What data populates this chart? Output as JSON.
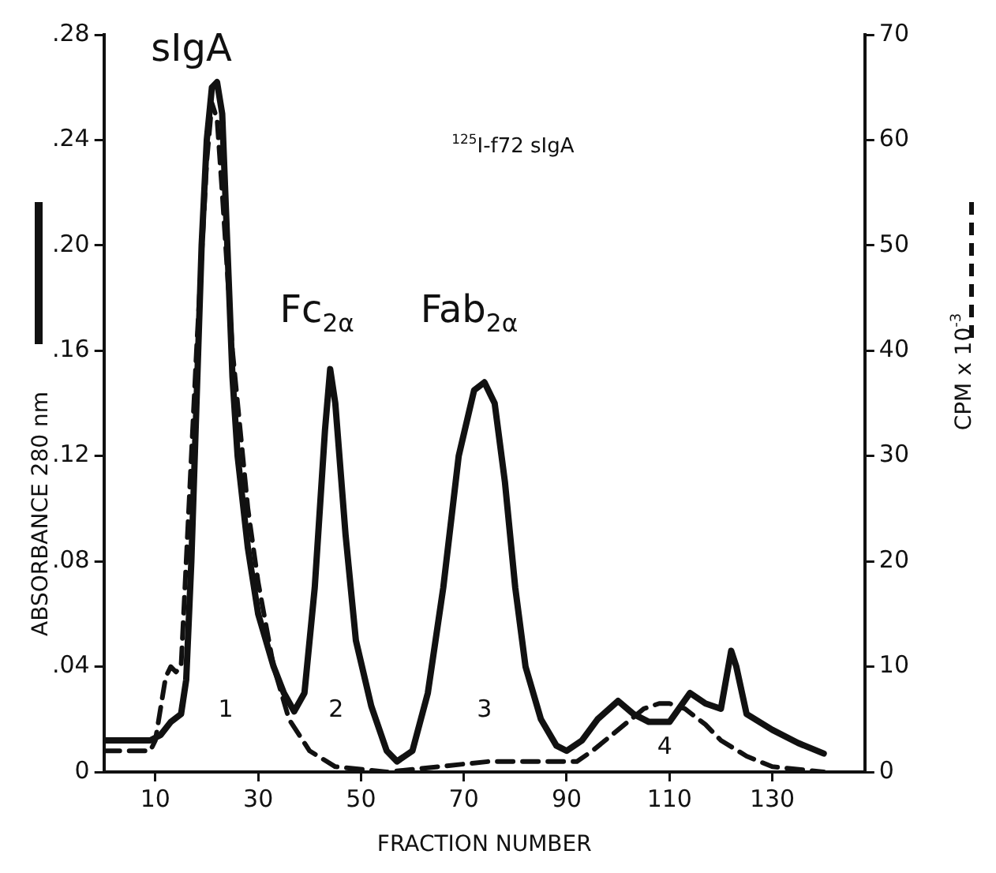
{
  "chart_data": {
    "type": "line",
    "xlabel": "FRACTION NUMBER",
    "ylabel": "ABSORBANCE 280 nm",
    "y2label": "CPM x 10$^{-3}$",
    "xlim": [
      0,
      148
    ],
    "xticks": [
      10,
      30,
      50,
      70,
      90,
      110,
      130
    ],
    "ylim": [
      0,
      0.28
    ],
    "yticks": [
      {
        "value": 0,
        "label": "0"
      },
      {
        "value": 0.04,
        "label": ".04"
      },
      {
        "value": 0.08,
        "label": ".08"
      },
      {
        "value": 0.12,
        "label": ".12"
      },
      {
        "value": 0.16,
        "label": ".16"
      },
      {
        "value": 0.2,
        "label": ".20"
      },
      {
        "value": 0.24,
        "label": ".24"
      },
      {
        "value": 0.28,
        "label": ".28"
      }
    ],
    "y2lim": [
      0,
      70
    ],
    "y2ticks": [
      0,
      10,
      20,
      30,
      40,
      50,
      60,
      70
    ],
    "grid": false,
    "legend": false,
    "marker": "none",
    "annotations": [
      "sIgA",
      "Fc$_{2α}$",
      "Fab$_{2α}$",
      "$^{125}$I-f72 sIgA",
      "1",
      "2",
      "3",
      "4"
    ],
    "series": [
      {
        "color": "#111111",
        "line_style": "solid",
        "x": [
          0,
          9,
          11,
          13,
          15,
          16,
          17,
          18,
          19,
          20,
          21,
          22,
          23,
          24,
          25,
          26,
          28,
          30,
          33,
          35,
          37,
          39,
          41,
          43,
          44,
          45,
          47,
          49,
          52,
          55,
          57,
          60,
          63,
          66,
          69,
          72,
          74,
          76,
          78,
          80,
          82,
          85,
          88,
          90,
          93,
          96,
          100,
          103,
          106,
          110,
          114,
          117,
          120,
          122,
          123,
          125,
          130,
          135,
          140
        ],
        "values": [
          0.012,
          0.012,
          0.014,
          0.019,
          0.022,
          0.035,
          0.08,
          0.14,
          0.2,
          0.24,
          0.26,
          0.262,
          0.25,
          0.2,
          0.15,
          0.12,
          0.085,
          0.06,
          0.04,
          0.03,
          0.023,
          0.03,
          0.07,
          0.13,
          0.153,
          0.14,
          0.09,
          0.05,
          0.025,
          0.008,
          0.004,
          0.008,
          0.03,
          0.07,
          0.12,
          0.145,
          0.148,
          0.14,
          0.11,
          0.07,
          0.04,
          0.02,
          0.01,
          0.008,
          0.012,
          0.02,
          0.027,
          0.022,
          0.019,
          0.019,
          0.03,
          0.026,
          0.024,
          0.046,
          0.04,
          0.022,
          0.016,
          0.011,
          0.007
        ]
      },
      {
        "color": "#111111",
        "line_style": "dashed",
        "axis": "y2",
        "x": [
          0,
          9,
          10,
          11,
          12,
          13,
          14,
          15,
          16,
          18,
          20,
          21,
          22,
          23,
          25,
          28,
          30,
          33,
          36,
          40,
          45,
          55,
          65,
          75,
          85,
          92,
          95,
          100,
          105,
          108,
          110,
          113,
          117,
          120,
          125,
          130,
          140
        ],
        "values": [
          2,
          2,
          3,
          6,
          9,
          10,
          9.5,
          10,
          20,
          40,
          58,
          63.5,
          62,
          55,
          40,
          25,
          18,
          10,
          5,
          2,
          0.5,
          0,
          0.5,
          1,
          1,
          1,
          2,
          4,
          6,
          6.5,
          6.5,
          6,
          4.5,
          3,
          1.5,
          0.5,
          0
        ]
      }
    ]
  }
}
